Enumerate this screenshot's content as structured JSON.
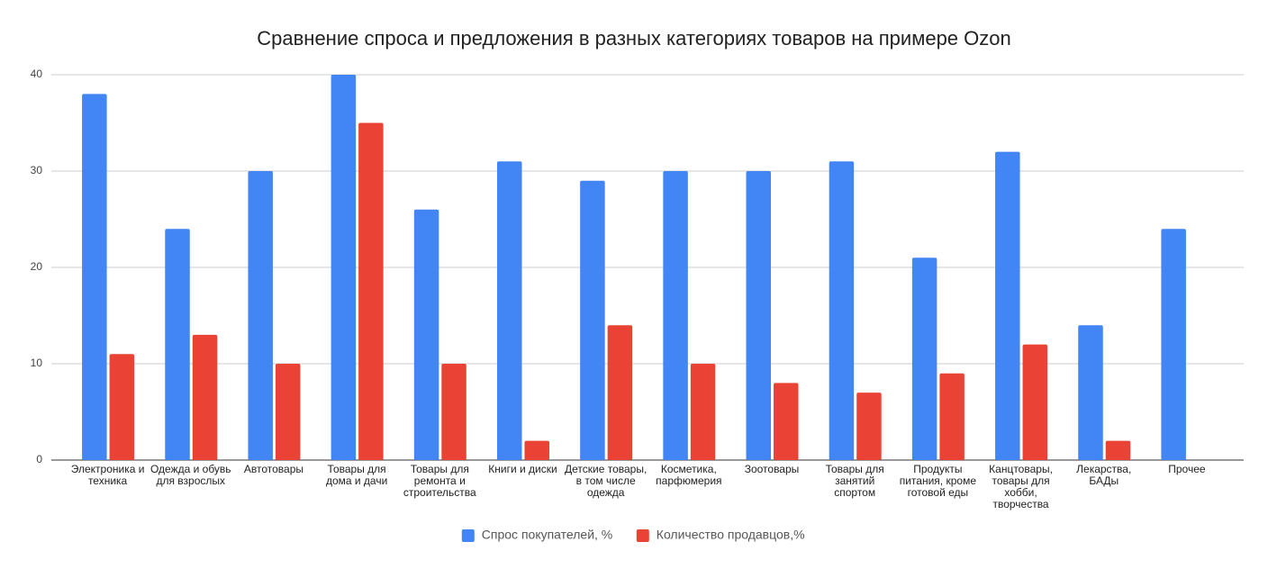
{
  "chart_data": {
    "type": "bar",
    "title": "Сравнение спроса и предложения в разных категориях товаров на примере Ozon",
    "categories": [
      "Электроника и техника",
      "Одежда и обувь для взрослых",
      "Автотовары",
      "Товары для дома и дачи",
      "Товары для ремонта и строительства",
      "Книги и диски",
      "Детские товары, в том числе одежда",
      "Косметика, парфюмерия",
      "Зоотовары",
      "Товары для занятий спортом",
      "Продукты питания, кроме готовой еды",
      "Канцтовары, товары для хобби, творчества",
      "Лекарства, БАДы",
      "Прочее"
    ],
    "series": [
      {
        "name": "Спрос покупателей, %",
        "color": "#4285f4",
        "values": [
          38,
          24,
          30,
          40,
          26,
          31,
          29,
          30,
          30,
          31,
          21,
          32,
          14,
          24
        ]
      },
      {
        "name": "Количество продавцов,%",
        "color": "#ea4335",
        "values": [
          11,
          13,
          10,
          35,
          10,
          2,
          14,
          10,
          8,
          7,
          9,
          12,
          2,
          null
        ]
      }
    ],
    "ylim": [
      0,
      40
    ],
    "yticks": [
      0,
      10,
      20,
      30,
      40
    ],
    "grid": true,
    "legend": "bottom"
  }
}
